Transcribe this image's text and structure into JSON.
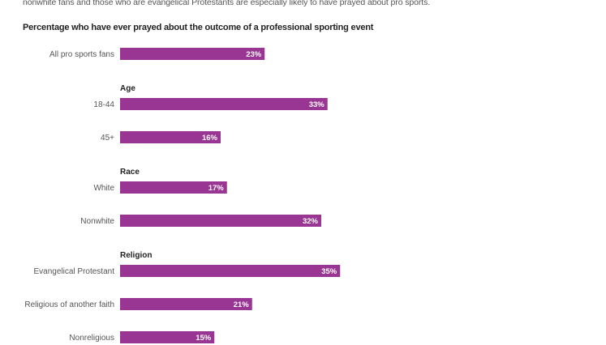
{
  "intro_text": "nonwhite fans and those who are evangelical Protestants are especially likely to have prayed about pro sports.",
  "subtitle": "Percentage who have ever prayed about the outcome of a professional sporting event",
  "colors": {
    "bar": "#993592"
  },
  "chart_data": {
    "type": "bar",
    "orientation": "horizontal",
    "title": "Percentage who have ever prayed about the outcome of a professional sporting event",
    "value_suffix": "%",
    "xlim": [
      0,
      100
    ],
    "groups": [
      {
        "header": "",
        "items": [
          {
            "label": "All pro sports fans",
            "value": 23,
            "value_label": "23%"
          }
        ]
      },
      {
        "header": "Age",
        "items": [
          {
            "label": "18-44",
            "value": 33,
            "value_label": "33%"
          },
          {
            "label": "45+",
            "value": 16,
            "value_label": "16%"
          }
        ]
      },
      {
        "header": "Race",
        "items": [
          {
            "label": "White",
            "value": 17,
            "value_label": "17%"
          },
          {
            "label": "Nonwhite",
            "value": 32,
            "value_label": "32%"
          }
        ]
      },
      {
        "header": "Religion",
        "items": [
          {
            "label": "Evangelical Protestant",
            "value": 35,
            "value_label": "35%"
          },
          {
            "label": "Religious of another faith",
            "value": 21,
            "value_label": "21%"
          },
          {
            "label": "Nonreligious",
            "value": 15,
            "value_label": "15%"
          }
        ]
      }
    ]
  }
}
